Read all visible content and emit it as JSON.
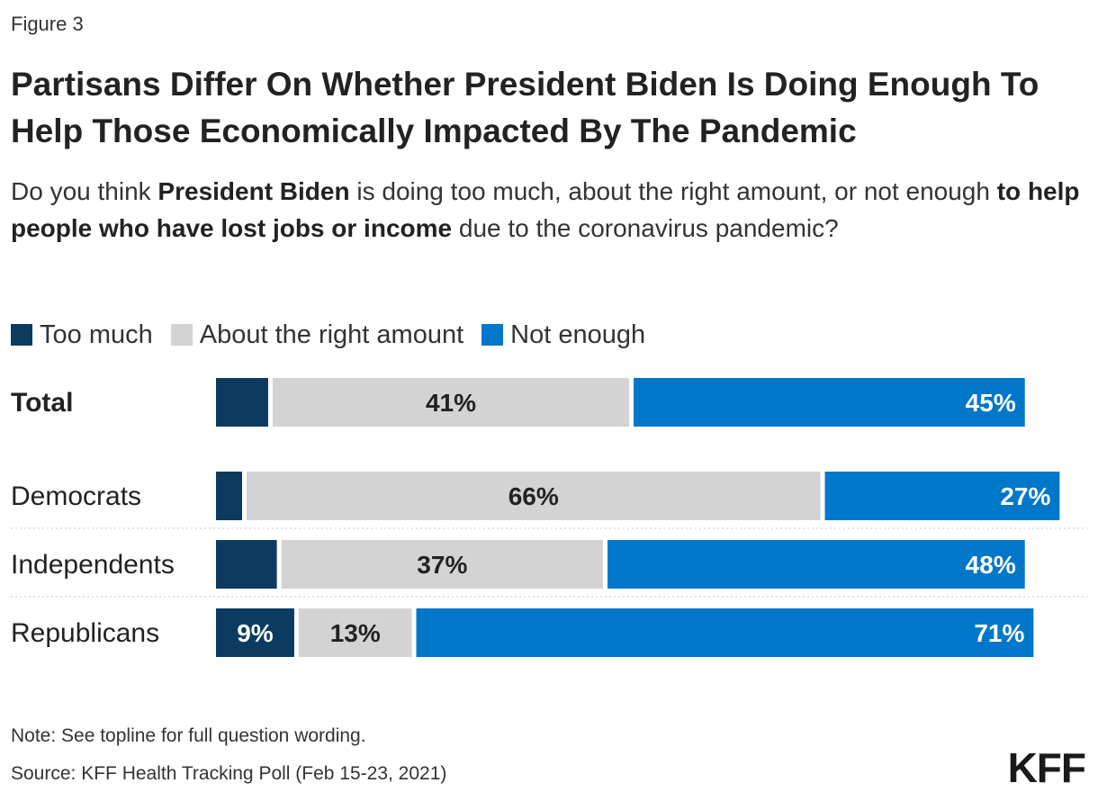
{
  "header": {
    "figure_label": "Figure 3",
    "title": "Partisans Differ On Whether President Biden Is Doing Enough To Help Those Economically Impacted By The Pandemic",
    "subtitle_parts": [
      {
        "text": "Do you think ",
        "bold": false
      },
      {
        "text": "President Biden",
        "bold": true
      },
      {
        "text": " is doing too much, about the right amount, or not enough ",
        "bold": false
      },
      {
        "text": "to help people who have lost jobs or income",
        "bold": true
      },
      {
        "text": " due to the coronavirus pandemic?",
        "bold": false
      }
    ]
  },
  "chart_data": {
    "type": "bar",
    "orientation": "horizontal",
    "stacked": true,
    "categories": [
      "Total",
      "Democrats",
      "Independents",
      "Republicans"
    ],
    "series": [
      {
        "name": "Too much",
        "color": "#0b3b60",
        "values": [
          6,
          3,
          7,
          9
        ],
        "value_labels": [
          "",
          "",
          "",
          "9%"
        ]
      },
      {
        "name": "About the right amount",
        "color": "#d3d3d3",
        "values": [
          41,
          66,
          37,
          13
        ],
        "value_labels": [
          "41%",
          "66%",
          "37%",
          "13%"
        ]
      },
      {
        "name": "Not enough",
        "color": "#0077c8",
        "values": [
          45,
          27,
          48,
          71
        ],
        "value_labels": [
          "45%",
          "27%",
          "48%",
          "71%"
        ]
      }
    ],
    "xlim": [
      0,
      100
    ],
    "legend_position": "top-left",
    "grid": false
  },
  "footer": {
    "note": "Note: See topline for full question wording.",
    "source": "Source: KFF Health Tracking Poll (Feb 15-23, 2021)",
    "logo": "KFF"
  }
}
